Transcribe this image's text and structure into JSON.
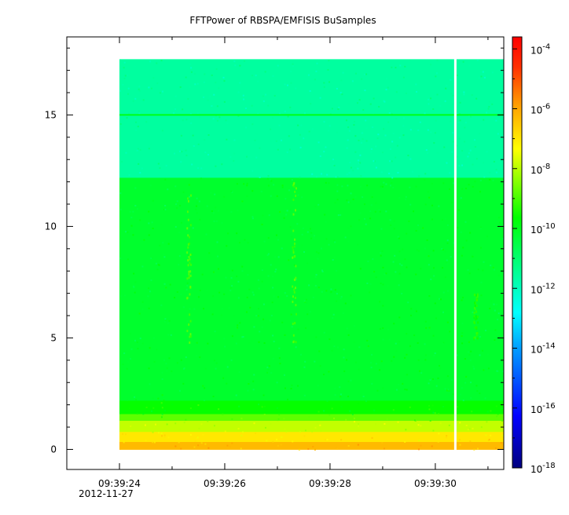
{
  "chart_data": {
    "type": "heatmap",
    "title": "FFTPower of RBSPA/EMFISIS  BuSamples",
    "xlabel": "",
    "ylabel": "",
    "x_axis": {
      "tick_labels": [
        "09:39:24",
        "09:39:26",
        "09:39:28",
        "09:39:30"
      ],
      "tick_values_sec": [
        24,
        26,
        28,
        30
      ],
      "minor_tick_values_sec": [
        25,
        27,
        29,
        31
      ],
      "range_sec": [
        23.0,
        31.3
      ],
      "date_label": "2012-11-27"
    },
    "y_axis": {
      "tick_labels": [
        "0",
        "5",
        "10",
        "15"
      ],
      "tick_values": [
        0,
        5,
        10,
        15
      ],
      "range": [
        -0.9,
        18.5
      ]
    },
    "colorbar": {
      "scale": "log",
      "range_exp": [
        -18,
        -3.6
      ],
      "tick_exponents": [
        -18,
        -16,
        -14,
        -12,
        -10,
        -8,
        -6,
        -4
      ],
      "tick_base": "10"
    },
    "data_extent": {
      "x_start_sec": 24.0,
      "x_end_sec": 31.3,
      "y_min": 0.0,
      "y_max": 17.5,
      "gap_at_sec": 30.38
    },
    "bands": [
      {
        "y_from": 0.0,
        "y_to": 0.35,
        "log_power": -6.3
      },
      {
        "y_from": 0.35,
        "y_to": 0.8,
        "log_power": -7.0
      },
      {
        "y_from": 0.8,
        "y_to": 1.3,
        "log_power": -7.9
      },
      {
        "y_from": 1.3,
        "y_to": 1.6,
        "log_power": -8.8
      },
      {
        "y_from": 1.6,
        "y_to": 2.2,
        "log_power": -9.6
      },
      {
        "y_from": 2.2,
        "y_to": 12.2,
        "log_power": -10.2
      },
      {
        "y_from": 12.2,
        "y_to": 17.5,
        "log_power": -11.6
      }
    ],
    "line_features": [
      {
        "y": 15.0,
        "log_power": -9.9
      }
    ],
    "burst_features": [
      {
        "x_sec": 25.3,
        "y_from": 4.5,
        "y_to": 11.5,
        "log_power": -8.9
      },
      {
        "x_sec": 27.3,
        "y_from": 4.5,
        "y_to": 12.0,
        "log_power": -8.9
      },
      {
        "x_sec": 30.75,
        "y_from": 5.0,
        "y_to": 7.0,
        "log_power": -9.4
      }
    ]
  }
}
